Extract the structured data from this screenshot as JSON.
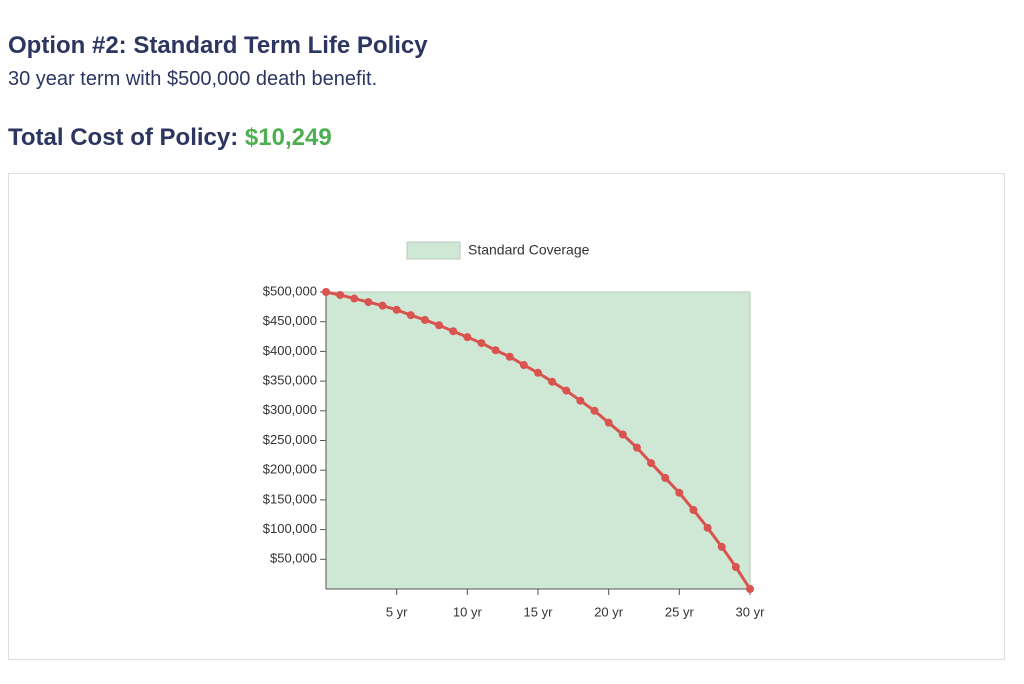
{
  "header": {
    "title": "Option #2: Standard Term Life Policy",
    "subtitle": "30 year term with $500,000 death benefit.",
    "cost_label": "Total Cost of Policy:",
    "cost_value": "$10,249"
  },
  "chart_data": {
    "type": "line",
    "x": [
      0,
      1,
      2,
      3,
      4,
      5,
      6,
      7,
      8,
      9,
      10,
      11,
      12,
      13,
      14,
      15,
      16,
      17,
      18,
      19,
      20,
      21,
      22,
      23,
      24,
      25,
      26,
      27,
      28,
      29,
      30
    ],
    "series": [
      {
        "name": "Standard Coverage",
        "type": "area",
        "color": "#cfe8d5",
        "values": [
          500000,
          500000,
          500000,
          500000,
          500000,
          500000,
          500000,
          500000,
          500000,
          500000,
          500000,
          500000,
          500000,
          500000,
          500000,
          500000,
          500000,
          500000,
          500000,
          500000,
          500000,
          500000,
          500000,
          500000,
          500000,
          500000,
          500000,
          500000,
          500000,
          500000,
          500000
        ]
      },
      {
        "type": "line",
        "color": "#d9534f",
        "values": [
          500000,
          495000,
          489000,
          483000,
          477000,
          470000,
          461000,
          453000,
          444000,
          434000,
          424000,
          414000,
          402000,
          391000,
          377000,
          364000,
          349000,
          334000,
          317000,
          300000,
          280000,
          260000,
          238000,
          212000,
          187000,
          162000,
          133000,
          103000,
          71000,
          37000,
          0
        ]
      }
    ],
    "xlim": [
      0,
      30
    ],
    "xticks": [
      {
        "value": 5,
        "label": "5 yr"
      },
      {
        "value": 10,
        "label": "10 yr"
      },
      {
        "value": 15,
        "label": "15 yr"
      },
      {
        "value": 20,
        "label": "20 yr"
      },
      {
        "value": 25,
        "label": "25 yr"
      },
      {
        "value": 30,
        "label": "30 yr"
      }
    ],
    "ylim": [
      0,
      500000
    ],
    "yticks": [
      {
        "value": 50000,
        "label": "$50,000"
      },
      {
        "value": 100000,
        "label": "$100,000"
      },
      {
        "value": 150000,
        "label": "$150,000"
      },
      {
        "value": 200000,
        "label": "$200,000"
      },
      {
        "value": 250000,
        "label": "$250,000"
      },
      {
        "value": 300000,
        "label": "$300,000"
      },
      {
        "value": 350000,
        "label": "$350,000"
      },
      {
        "value": 400000,
        "label": "$400,000"
      },
      {
        "value": 450000,
        "label": "$450,000"
      },
      {
        "value": 500000,
        "label": "$500,000"
      }
    ]
  }
}
